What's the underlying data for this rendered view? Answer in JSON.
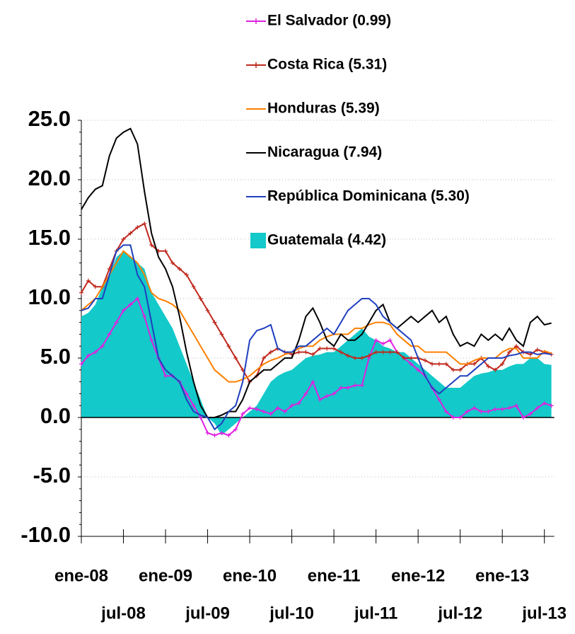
{
  "chart_data": {
    "type": "line",
    "categories": [
      "ene-08",
      null,
      null,
      null,
      null,
      null,
      "jul-08",
      null,
      null,
      null,
      null,
      null,
      "ene-09",
      null,
      null,
      null,
      null,
      null,
      "jul-09",
      null,
      null,
      null,
      null,
      null,
      "ene-10",
      null,
      null,
      null,
      null,
      null,
      "jul-10",
      null,
      null,
      null,
      null,
      null,
      "ene-11",
      null,
      null,
      null,
      null,
      null,
      "jul-11",
      null,
      null,
      null,
      null,
      null,
      "ene-12",
      null,
      null,
      null,
      null,
      null,
      "jul-12",
      null,
      null,
      null,
      null,
      null,
      "ene-13",
      null,
      null,
      null,
      null,
      null,
      "jul-13",
      null
    ],
    "ylim": [
      -10,
      25
    ],
    "yticks": [
      {
        "value": -10,
        "label": "-10.0"
      },
      {
        "value": -5,
        "label": "-5.0"
      },
      {
        "value": 0,
        "label": "0.0"
      },
      {
        "value": 5,
        "label": "5.0"
      },
      {
        "value": 10,
        "label": "10.0"
      },
      {
        "value": 15,
        "label": "15.0"
      },
      {
        "value": 20,
        "label": "20.0"
      },
      {
        "value": 25,
        "label": "25.0"
      }
    ],
    "grid": true,
    "legend": "upper right",
    "series": [
      {
        "name": "El Salvador (0.99)",
        "color": "#e020e0",
        "marker": "+",
        "values": [
          4.5,
          5.2,
          5.5,
          6,
          7,
          8,
          9,
          9.5,
          10,
          8.5,
          6.5,
          5,
          3.5,
          3.5,
          3,
          2,
          1,
          0,
          -1.3,
          -1.5,
          -1.3,
          -1.5,
          -1,
          0.3,
          0.8,
          0.7,
          0.5,
          0.3,
          0.8,
          0.5,
          1,
          1.2,
          2,
          3,
          1.5,
          1.8,
          2,
          2.5,
          2.5,
          2.7,
          2.7,
          5,
          6.5,
          6.2,
          6.5,
          5.5,
          5,
          4.5,
          4,
          3.5,
          2.5,
          1.5,
          0.5,
          0,
          0,
          0.5,
          0.8,
          0.5,
          0.5,
          0.7,
          0.7,
          0.8,
          1,
          0,
          0.3,
          0.8,
          1.2,
          0.99
        ]
      },
      {
        "name": "Costa Rica (5.31)",
        "color": "#c0281c",
        "marker": "+",
        "values": [
          10.5,
          11.5,
          11,
          11,
          12.5,
          14,
          15,
          15.5,
          16,
          16.3,
          14.5,
          14,
          14,
          13,
          12.5,
          12,
          11,
          10,
          9,
          8,
          7,
          6,
          5,
          4,
          3,
          3.5,
          5,
          5.5,
          5.8,
          5.5,
          5.3,
          5.5,
          5.5,
          5.3,
          5.8,
          5.8,
          5.8,
          5.5,
          5.2,
          5,
          5,
          5.2,
          5.5,
          5.5,
          5.5,
          5.5,
          5,
          5,
          5,
          4.8,
          4.5,
          4.5,
          4.5,
          4,
          4,
          4.5,
          4.5,
          5,
          4.3,
          4,
          4.5,
          5.5,
          6,
          5.5,
          5.3,
          5.7,
          5.5,
          5.31
        ]
      },
      {
        "name": "Honduras (5.39)",
        "color": "#ff8000",
        "values": [
          9,
          9.5,
          10,
          11,
          12,
          13,
          14,
          13.5,
          13,
          12,
          10.5,
          10,
          9.8,
          9.5,
          9,
          8,
          7,
          6,
          5,
          4,
          3.5,
          3,
          3,
          3.2,
          3.5,
          4,
          4.5,
          4.8,
          5,
          5.3,
          5.5,
          5.8,
          6,
          6,
          6.5,
          6.8,
          7,
          7,
          7,
          7.5,
          7.5,
          7.8,
          8,
          8,
          7.8,
          7,
          6.5,
          6,
          6,
          5.5,
          5.5,
          5.5,
          5.5,
          5,
          4.5,
          4.5,
          4.8,
          5,
          5,
          5,
          5.5,
          5.8,
          5.8,
          5,
          5,
          5,
          5.6,
          5.39
        ]
      },
      {
        "name": "Nicaragua (7.94)",
        "color": "#000000",
        "values": [
          17.5,
          18.5,
          19.2,
          19.5,
          22,
          23.5,
          24,
          24.3,
          23,
          19,
          15.5,
          13.5,
          12.5,
          11,
          8.5,
          5.5,
          3,
          1,
          0,
          0,
          0.2,
          0.5,
          0.5,
          1.5,
          3,
          3.5,
          4,
          4,
          4.5,
          5,
          5,
          6.5,
          8.5,
          9.2,
          8,
          6.5,
          6,
          7,
          6.5,
          6.5,
          7,
          8,
          9,
          9.5,
          8,
          7.5,
          8,
          8.5,
          8,
          8.5,
          9,
          8,
          8.5,
          7,
          6,
          6.3,
          6,
          7,
          6.5,
          7,
          6.5,
          7.5,
          6.5,
          6,
          8,
          8.5,
          7.8,
          7.94
        ]
      },
      {
        "name": "República Dominicana (5.30)",
        "color": "#1f3fbf",
        "values": [
          9,
          9.2,
          10,
          10,
          12,
          14,
          14.5,
          14.5,
          12,
          11,
          8,
          5,
          4,
          3.5,
          3,
          1.5,
          0.5,
          0.2,
          0,
          -1,
          -0.5,
          0.5,
          1,
          3,
          6.5,
          7.3,
          7.5,
          7.8,
          5.8,
          5.5,
          5.5,
          6,
          6,
          6.5,
          7,
          7.5,
          7,
          8,
          9,
          9.5,
          10,
          10,
          9.5,
          8.5,
          8,
          7.5,
          7,
          6.5,
          5,
          3.5,
          2.5,
          2,
          2.5,
          3,
          3.5,
          3.5,
          4,
          4.5,
          5,
          5,
          5,
          5.2,
          5.3,
          5.5,
          5.5,
          5.3,
          5.4,
          5.3
        ]
      },
      {
        "name": "Guatemala (4.42)",
        "color": "#13c9c9",
        "kind": "area",
        "values": [
          8.5,
          8.8,
          9.5,
          11,
          12,
          13.5,
          14,
          13.5,
          13,
          12.5,
          10.5,
          9.5,
          8.5,
          7.5,
          6,
          4.5,
          3,
          1.5,
          0,
          -0.5,
          -1.5,
          -1,
          -0.5,
          0,
          0.5,
          1,
          2,
          3,
          3.5,
          3.8,
          4,
          4.5,
          5,
          5.2,
          5.3,
          5.5,
          5.5,
          6,
          6.5,
          7,
          7.5,
          6.8,
          6.5,
          6,
          5.8,
          5.5,
          5.5,
          5,
          4.5,
          4,
          3.5,
          3,
          2.5,
          2.5,
          2.5,
          3,
          3.5,
          3.7,
          3.8,
          4,
          4,
          4.3,
          4.5,
          4.5,
          5,
          5,
          4.5,
          4.42
        ]
      }
    ]
  }
}
